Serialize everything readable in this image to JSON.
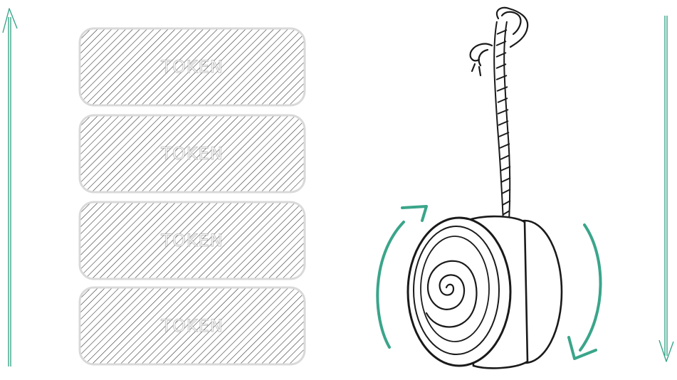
{
  "colors": {
    "accent": "#3aa58a",
    "ink": "#1a1a1a",
    "block_outline": "#d9d9d9"
  },
  "icons": {
    "up_arrow": "thin-up-arrow-icon",
    "down_arrow": "thin-down-arrow-icon",
    "yoyo": "yoyo-illustration",
    "spin_arrows": "rotation-arrows-icon"
  },
  "blocks": [
    {
      "label": "TOKEN"
    },
    {
      "label": "TOKEN"
    },
    {
      "label": "TOKEN"
    },
    {
      "label": "TOKEN"
    }
  ]
}
